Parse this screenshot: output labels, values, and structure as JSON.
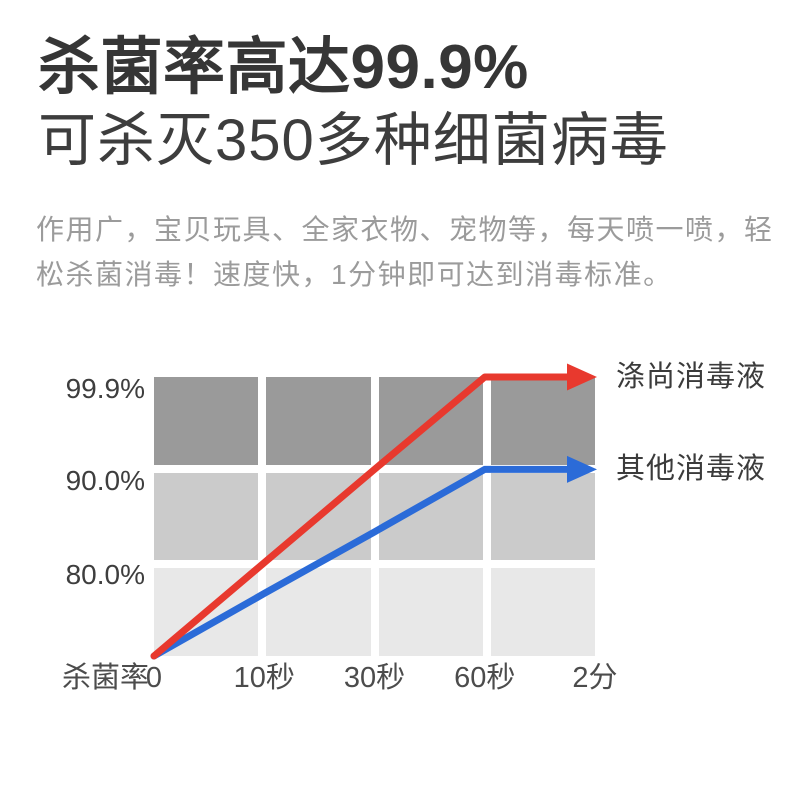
{
  "header": {
    "title_line1": "杀菌率高达99.9%",
    "title_line2": "可杀灭350多种细菌病毒"
  },
  "description": {
    "lines": [
      "作用广，宝贝玩具、全家衣物、宠物等，每天喷一喷，轻",
      "松杀菌消毒！速度快，1分钟即可达到消毒标准。"
    ]
  },
  "chart_data": {
    "type": "line",
    "x_axis_label": "杀菌率",
    "x_ticks": [
      "0",
      "10秒",
      "30秒",
      "60秒",
      "2分"
    ],
    "y_tick_labels": [
      "99.9%",
      "90.0%",
      "80.0%"
    ],
    "y_tick_values": [
      99.9,
      90.0,
      80.0
    ],
    "y_min": 70,
    "y_max": 99.9,
    "grid": {
      "rows": 3,
      "cols": 4,
      "row_colors": [
        "#9a9a9a",
        "#cbcbcb",
        "#e8e8e8"
      ],
      "gap_color": "#ffffff"
    },
    "series": [
      {
        "name": "涤尚消毒液",
        "color": "#e8392e",
        "values": [
          70,
          80,
          90,
          99.9,
          99.9
        ]
      },
      {
        "name": "其他消毒液",
        "color": "#2b6bd8",
        "values": [
          70,
          76.7,
          83.3,
          90.0,
          90.0
        ]
      }
    ],
    "legend_position": "right",
    "annotation": "红线60秒达到99.9%，蓝线60秒达到90.0%"
  }
}
